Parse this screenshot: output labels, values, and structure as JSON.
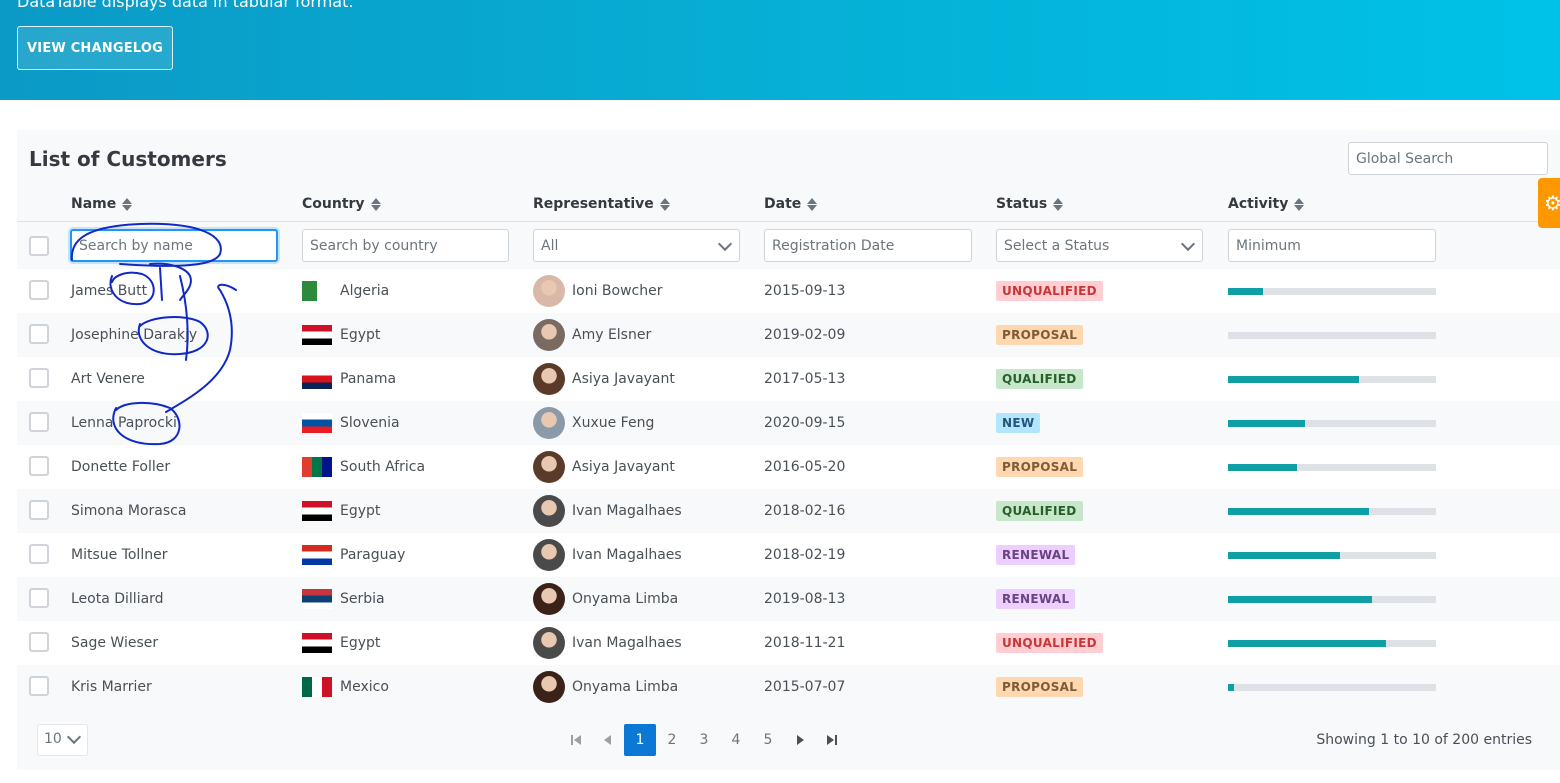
{
  "hero": {
    "text": "DataTable displays data in tabular format.",
    "changelog_button": "VIEW CHANGELOG"
  },
  "table": {
    "title": "List of Customers",
    "global_search_placeholder": "Global Search",
    "columns": [
      {
        "label": "Name"
      },
      {
        "label": "Country"
      },
      {
        "label": "Representative"
      },
      {
        "label": "Date"
      },
      {
        "label": "Status"
      },
      {
        "label": "Activity"
      }
    ],
    "filters": {
      "name": "Search by name",
      "country": "Search by country",
      "representative": "All",
      "date": "Registration Date",
      "status": "Select a Status",
      "activity": "Minimum"
    },
    "rows": [
      {
        "name": "James Butt",
        "country": "Algeria",
        "rep": "Ioni Bowcher",
        "date": "2015-09-13",
        "status": "UNQUALIFIED",
        "activity": 0.17
      },
      {
        "name": "Josephine Darakjy",
        "country": "Egypt",
        "rep": "Amy Elsner",
        "date": "2019-02-09",
        "status": "PROPOSAL",
        "activity": 0.0
      },
      {
        "name": "Art Venere",
        "country": "Panama",
        "rep": "Asiya Javayant",
        "date": "2017-05-13",
        "status": "QUALIFIED",
        "activity": 0.63
      },
      {
        "name": "Lenna Paprocki",
        "country": "Slovenia",
        "rep": "Xuxue Feng",
        "date": "2020-09-15",
        "status": "NEW",
        "activity": 0.37
      },
      {
        "name": "Donette Foller",
        "country": "South Africa",
        "rep": "Asiya Javayant",
        "date": "2016-05-20",
        "status": "PROPOSAL",
        "activity": 0.33
      },
      {
        "name": "Simona Morasca",
        "country": "Egypt",
        "rep": "Ivan Magalhaes",
        "date": "2018-02-16",
        "status": "QUALIFIED",
        "activity": 0.68
      },
      {
        "name": "Mitsue Tollner",
        "country": "Paraguay",
        "rep": "Ivan Magalhaes",
        "date": "2018-02-19",
        "status": "RENEWAL",
        "activity": 0.54
      },
      {
        "name": "Leota Dilliard",
        "country": "Serbia",
        "rep": "Onyama Limba",
        "date": "2019-08-13",
        "status": "RENEWAL",
        "activity": 0.69
      },
      {
        "name": "Sage Wieser",
        "country": "Egypt",
        "rep": "Ivan Magalhaes",
        "date": "2018-11-21",
        "status": "UNQUALIFIED",
        "activity": 0.76
      },
      {
        "name": "Kris Marrier",
        "country": "Mexico",
        "rep": "Onyama Limba",
        "date": "2015-07-07",
        "status": "PROPOSAL",
        "activity": 0.03
      }
    ],
    "status_colors": {
      "UNQUALIFIED": {
        "bg": "#ffcdd2",
        "fg": "#c63737"
      },
      "PROPOSAL": {
        "bg": "#ffd8b2",
        "fg": "#805b36"
      },
      "QUALIFIED": {
        "bg": "#c8e6c9",
        "fg": "#256029"
      },
      "NEW": {
        "bg": "#b3e5fc",
        "fg": "#23547b"
      },
      "RENEWAL": {
        "bg": "#eccfff",
        "fg": "#694382"
      }
    },
    "flags": {
      "Algeria": [
        "#2d8a3a",
        "#ffffff"
      ],
      "Egypt": [
        "#ce1126",
        "#ffffff",
        "#000000"
      ],
      "Panama": [
        "#ffffff",
        "#da121a",
        "#072357"
      ],
      "Slovenia": [
        "#ffffff",
        "#0052a5",
        "#ed1c24"
      ],
      "South Africa": [
        "#e03c31",
        "#007749",
        "#001489"
      ],
      "Paraguay": [
        "#d52b1e",
        "#ffffff",
        "#0038a8"
      ],
      "Serbia": [
        "#c6363c",
        "#0c4076",
        "#ffffff"
      ],
      "Mexico": [
        "#006847",
        "#ffffff",
        "#ce1126"
      ]
    },
    "avatar_colors": {
      "Ioni Bowcher": "#d9b8a8",
      "Amy Elsner": "#7a6a62",
      "Asiya Javayant": "#5a3a28",
      "Xuxue Feng": "#8a9aa8",
      "Ivan Magalhaes": "#4a4a4a",
      "Onyama Limba": "#3a2218"
    }
  },
  "paginator": {
    "rows_per_page": "10",
    "pages": [
      "1",
      "2",
      "3",
      "4",
      "5"
    ],
    "current_page": "1",
    "summary": "Showing 1 to 10 of 200 entries"
  },
  "accent": "#0a78d4"
}
